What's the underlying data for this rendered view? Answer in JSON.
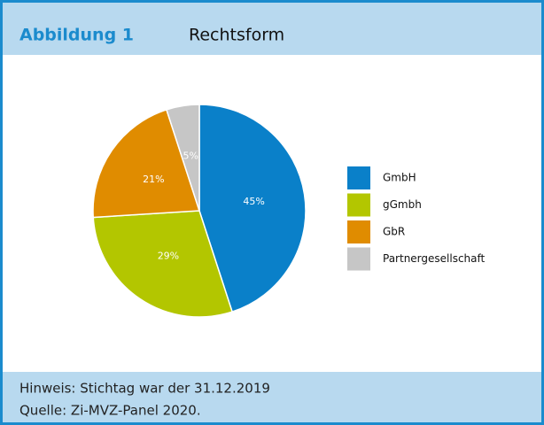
{
  "chart_data": {
    "type": "pie",
    "figure_label": "Abbildung 1",
    "title": "Rechtsform",
    "categories": [
      "GmbH",
      "gGmbh",
      "GbR",
      "Partnergesellschaft"
    ],
    "values": [
      45,
      29,
      21,
      5
    ],
    "value_labels": [
      "45%",
      "29%",
      "21%",
      "5%"
    ],
    "colors": [
      "#0a80c9",
      "#b3c600",
      "#e08c00",
      "#c6c6c6"
    ],
    "legend": "right",
    "note": "Hinweis: Stichtag war der 31.12.2019",
    "source": "Quelle: Zi-MVZ-Panel 2020."
  }
}
